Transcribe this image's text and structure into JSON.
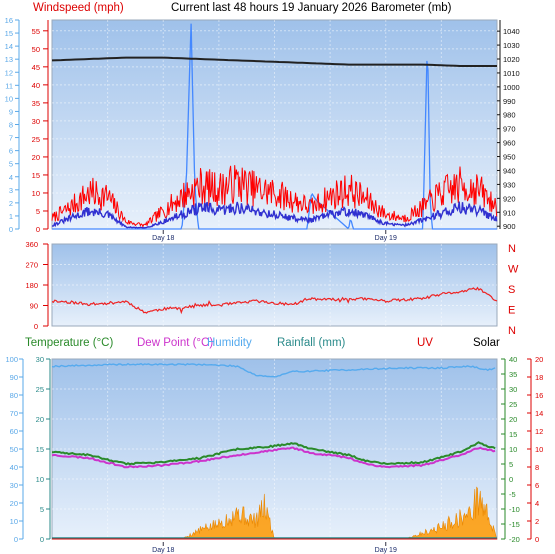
{
  "header": {
    "windspeed": "Windspeed (mph)",
    "title": "Current last 48 hours 19 January 2026",
    "barometer": "Barometer (mb)"
  },
  "legend": {
    "temperature": "Temperature (°C)",
    "dewpoint": "Dew Point (°C)",
    "humidity": "Humidity",
    "rainfall": "Rainfall (mm)",
    "uv": "UV",
    "solar": "Solar"
  },
  "colors": {
    "windspeed": "#ff0000",
    "windavg": "#3030d0",
    "gust": "#4488ff",
    "barometer": "#222222",
    "direction": "#ee2222",
    "temperature": "#2a8a2a",
    "dewpoint": "#cc33cc",
    "humidity": "#55aaee",
    "rainfall": "#2a8a8a",
    "solar": "#ff9900",
    "uv": "#dd0000",
    "plot_top": "#9fc1ea",
    "plot_bottom": "#e7f0fb"
  },
  "chart_data": [
    {
      "type": "line",
      "panel": "wind-barometer",
      "x_tick_labels": [
        "Day 18",
        "Day 19"
      ],
      "x_range_hours": [
        -48,
        0
      ],
      "left_axis_mph": {
        "ylim": [
          0,
          58
        ],
        "ticks": [
          0,
          5,
          10,
          15,
          20,
          25,
          30,
          35,
          40,
          45,
          50,
          55
        ]
      },
      "left_axis_beaufort": {
        "ylim": [
          0,
          16
        ],
        "ticks": [
          0,
          1,
          2,
          3,
          4,
          5,
          6,
          7,
          8,
          9,
          10,
          11,
          12,
          13,
          14,
          15,
          16
        ]
      },
      "right_axis_mb": {
        "ylim": [
          898,
          1048
        ],
        "ticks": [
          900,
          910,
          920,
          930,
          940,
          950,
          960,
          970,
          980,
          990,
          1000,
          1010,
          1020,
          1030,
          1040
        ]
      },
      "series": [
        {
          "name": "Windspeed (mph)",
          "hours": [
            -48,
            -46,
            -44,
            -42,
            -40,
            -38,
            -36,
            -34,
            -32,
            -30,
            -28,
            -26,
            -24,
            -22,
            -20,
            -18,
            -16,
            -14,
            -12,
            -10,
            -8,
            -6,
            -4,
            -2,
            0
          ],
          "values": [
            3,
            6,
            10,
            9,
            2,
            1,
            5,
            9,
            12,
            11,
            13,
            11,
            10,
            8,
            6,
            9,
            11,
            8,
            4,
            3,
            6,
            10,
            12,
            11,
            6
          ]
        },
        {
          "name": "Average wind",
          "hours": [
            -48,
            -46,
            -44,
            -42,
            -40,
            -38,
            -36,
            -34,
            -32,
            -30,
            -28,
            -26,
            -24,
            -22,
            -20,
            -18,
            -16,
            -14,
            -12,
            -10,
            -8,
            -6,
            -4,
            -2,
            0
          ],
          "values": [
            1,
            3,
            5,
            4,
            0.5,
            0.3,
            2,
            4,
            6,
            5,
            6,
            5,
            4,
            3,
            2.5,
            4,
            5,
            3.5,
            1.5,
            1,
            2.5,
            4.5,
            6,
            5,
            3
          ]
        },
        {
          "name": "Gust",
          "hours": [
            -48,
            -34,
            -33.5,
            -33,
            -32.6,
            -32.2,
            -25,
            -20.5,
            -20,
            -19.5,
            -16,
            -15.8,
            -15.5,
            -8,
            -7.5,
            -7.2,
            -7,
            -3,
            0
          ],
          "values": [
            0,
            0,
            14,
            57,
            12,
            0,
            0,
            0,
            10,
            8,
            0,
            3,
            0,
            0,
            53,
            8,
            0,
            0,
            0
          ]
        },
        {
          "name": "Barometer (mb)",
          "hours": [
            -48,
            -44,
            -40,
            -36,
            -32,
            -28,
            -24,
            -20,
            -16,
            -12,
            -8,
            -4,
            0
          ],
          "values": [
            1019,
            1020,
            1021,
            1021,
            1020,
            1019,
            1018,
            1017,
            1016,
            1016,
            1016,
            1015,
            1015
          ]
        }
      ]
    },
    {
      "type": "line",
      "panel": "wind-direction",
      "ylim": [
        0,
        360
      ],
      "y_ticks": [
        0,
        90,
        180,
        270,
        360
      ],
      "compass_labels": [
        "N",
        "W",
        "S",
        "E",
        "N"
      ],
      "series": [
        {
          "name": "Wind direction",
          "hours": [
            -48,
            -46,
            -44,
            -42,
            -40,
            -38,
            -36,
            -34,
            -32,
            -30,
            -28,
            -26,
            -24,
            -22,
            -20,
            -18,
            -16,
            -14,
            -12,
            -10,
            -8,
            -6,
            -4,
            -2,
            0
          ],
          "values": [
            110,
            105,
            95,
            100,
            108,
            60,
            75,
            80,
            90,
            92,
            100,
            110,
            100,
            95,
            120,
            115,
            120,
            118,
            110,
            115,
            120,
            140,
            150,
            165,
            110
          ]
        }
      ]
    },
    {
      "type": "line",
      "panel": "temperature",
      "x_tick_labels": [
        "Day 18",
        "Day 19"
      ],
      "left_axis_degc": {
        "ylim": [
          0,
          30
        ],
        "ticks": [
          0,
          5,
          10,
          15,
          20,
          25,
          30
        ]
      },
      "left_axis_humidity": {
        "ylim": [
          0,
          100
        ],
        "ticks": [
          0,
          10,
          20,
          30,
          40,
          50,
          60,
          70,
          80,
          90,
          100
        ]
      },
      "right_axis_temp": {
        "ylim": [
          -20,
          40
        ],
        "ticks": [
          -20,
          -15,
          -10,
          -5,
          0,
          5,
          10,
          15,
          20,
          25,
          30,
          35,
          40
        ]
      },
      "right_axis_uv": {
        "ylim": [
          0,
          20
        ],
        "ticks": [
          0,
          2,
          4,
          6,
          8,
          10,
          12,
          14,
          16,
          18,
          20
        ]
      },
      "series": [
        {
          "name": "Temperature (°C)",
          "hours": [
            -48,
            -44,
            -40,
            -36,
            -32,
            -28,
            -24,
            -22,
            -20,
            -18,
            -16,
            -14,
            -12,
            -8,
            -4,
            -2,
            0
          ],
          "values": [
            14.5,
            14,
            12.5,
            12.8,
            13.5,
            15,
            15.5,
            16,
            15,
            14.5,
            14,
            13,
            12.5,
            12.8,
            14.5,
            16,
            15
          ]
        },
        {
          "name": "Dew Point (°C)",
          "hours": [
            -48,
            -44,
            -40,
            -36,
            -32,
            -28,
            -24,
            -22,
            -20,
            -18,
            -16,
            -14,
            -12,
            -8,
            -4,
            -2,
            0
          ],
          "values": [
            14,
            13.5,
            12,
            12.3,
            13,
            14,
            14.8,
            15.2,
            14.3,
            14,
            13.5,
            12.5,
            12,
            12.3,
            14,
            15.2,
            14.5
          ]
        },
        {
          "name": "Humidity",
          "hours": [
            -48,
            -40,
            -32,
            -28,
            -26,
            -24,
            -22,
            -16,
            -10,
            -6,
            -3,
            -1,
            0
          ],
          "values": [
            96,
            97,
            97,
            96,
            91,
            90,
            93,
            94,
            95,
            95,
            96,
            94,
            95
          ]
        },
        {
          "name": "Rainfall (mm)",
          "hours": [
            -48,
            0
          ],
          "values": [
            0,
            0
          ]
        },
        {
          "name": "Solar",
          "hours": [
            -48,
            -34,
            -32,
            -30,
            -28,
            -27,
            -26,
            -25,
            -24,
            -10,
            -8,
            -6,
            -5,
            -4,
            -3,
            -2,
            -1,
            0
          ],
          "values": [
            0,
            0,
            1.5,
            2.5,
            4.5,
            3.5,
            3,
            5.5,
            0,
            0,
            1,
            2,
            2.8,
            3.5,
            4,
            7,
            4,
            0
          ]
        },
        {
          "name": "UV",
          "hours": [
            -48,
            0
          ],
          "values": [
            0,
            0
          ]
        }
      ]
    }
  ]
}
